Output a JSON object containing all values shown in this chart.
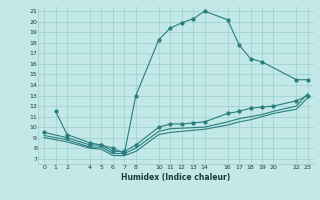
{
  "title": "",
  "xlabel": "Humidex (Indice chaleur)",
  "bg_color": "#c2e8e8",
  "line_color": "#2a7d7d",
  "grid_color": "#9ecece",
  "xlim": [
    -0.5,
    23.5
  ],
  "ylim": [
    6.5,
    21.5
  ],
  "xticks": [
    0,
    1,
    2,
    4,
    5,
    6,
    7,
    8,
    10,
    11,
    12,
    13,
    14,
    16,
    17,
    18,
    19,
    20,
    22,
    23
  ],
  "yticks": [
    7,
    8,
    9,
    10,
    11,
    12,
    13,
    14,
    15,
    16,
    17,
    18,
    19,
    20,
    21
  ],
  "line1_x": [
    1,
    2,
    4,
    5,
    6,
    7,
    8,
    10,
    11,
    12,
    13,
    14,
    16,
    17,
    18,
    19,
    22,
    23
  ],
  "line1_y": [
    11.5,
    9.3,
    8.5,
    8.3,
    8.0,
    7.5,
    13.0,
    18.3,
    19.4,
    19.9,
    20.3,
    21.0,
    20.2,
    17.8,
    16.5,
    16.2,
    14.5,
    14.5
  ],
  "line2_x": [
    0,
    2,
    4,
    5,
    6,
    7,
    8,
    10,
    11,
    12,
    13,
    14,
    16,
    17,
    18,
    19,
    20,
    22,
    23
  ],
  "line2_y": [
    9.5,
    9.0,
    8.3,
    8.3,
    7.7,
    7.7,
    8.3,
    10.0,
    10.3,
    10.3,
    10.4,
    10.5,
    11.3,
    11.5,
    11.8,
    11.9,
    12.0,
    12.5,
    13.0
  ],
  "line3_x": [
    0,
    2,
    4,
    5,
    6,
    7,
    8,
    10,
    11,
    12,
    13,
    14,
    16,
    17,
    18,
    19,
    20,
    22,
    23
  ],
  "line3_y": [
    9.2,
    8.8,
    8.1,
    8.1,
    7.5,
    7.5,
    8.0,
    9.6,
    9.85,
    9.9,
    9.95,
    10.0,
    10.5,
    10.8,
    11.0,
    11.2,
    11.5,
    12.0,
    13.2
  ],
  "line4_x": [
    0,
    2,
    4,
    5,
    6,
    7,
    8,
    10,
    11,
    12,
    13,
    14,
    16,
    17,
    18,
    19,
    20,
    22,
    23
  ],
  "line4_y": [
    9.0,
    8.6,
    8.0,
    7.9,
    7.3,
    7.3,
    7.7,
    9.3,
    9.5,
    9.6,
    9.7,
    9.8,
    10.2,
    10.5,
    10.7,
    11.0,
    11.3,
    11.7,
    12.8
  ]
}
